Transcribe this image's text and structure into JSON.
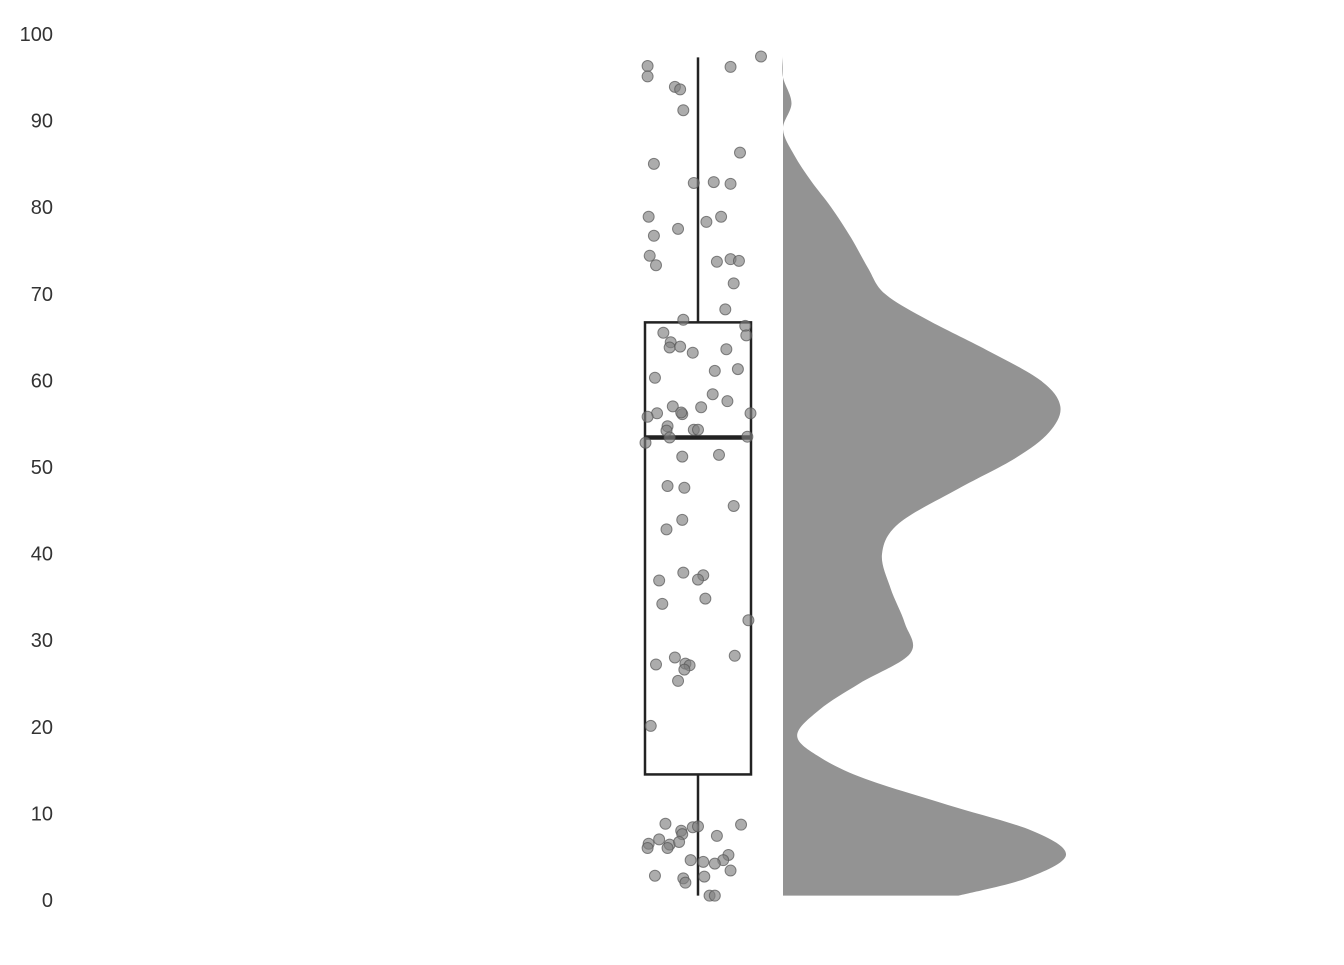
{
  "chart_data": {
    "type": "raincloud",
    "title": "",
    "xlabel": "",
    "ylabel": "",
    "ylim": [
      0,
      100
    ],
    "yticks": [
      0,
      10,
      20,
      30,
      40,
      50,
      60,
      70,
      80,
      90,
      100
    ],
    "grid": false,
    "legend": "none",
    "colors": {
      "points": "#808080",
      "point_stroke": "#555555",
      "box": "#222222",
      "density": "#939393",
      "tick_label": "#333333"
    },
    "box": {
      "whisker_low": 0.5,
      "q1": 14.5,
      "median": 53.4,
      "q3": 66.7,
      "whisker_high": 97.3
    },
    "points": [
      {
        "jitter": 0.6,
        "value": 97.4
      },
      {
        "jitter": -0.48,
        "value": 96.3
      },
      {
        "jitter": 0.31,
        "value": 96.2
      },
      {
        "jitter": -0.48,
        "value": 95.1
      },
      {
        "jitter": -0.22,
        "value": 93.9
      },
      {
        "jitter": -0.17,
        "value": 93.6
      },
      {
        "jitter": -0.14,
        "value": 91.2
      },
      {
        "jitter": 0.4,
        "value": 86.3
      },
      {
        "jitter": -0.42,
        "value": 85.0
      },
      {
        "jitter": -0.04,
        "value": 82.8
      },
      {
        "jitter": 0.15,
        "value": 82.9
      },
      {
        "jitter": 0.31,
        "value": 82.7
      },
      {
        "jitter": -0.47,
        "value": 78.9
      },
      {
        "jitter": 0.22,
        "value": 78.9
      },
      {
        "jitter": 0.08,
        "value": 78.3
      },
      {
        "jitter": -0.19,
        "value": 77.5
      },
      {
        "jitter": -0.42,
        "value": 76.7
      },
      {
        "jitter": -0.46,
        "value": 74.4
      },
      {
        "jitter": -0.4,
        "value": 73.3
      },
      {
        "jitter": 0.18,
        "value": 73.7
      },
      {
        "jitter": 0.31,
        "value": 74.0
      },
      {
        "jitter": 0.39,
        "value": 73.8
      },
      {
        "jitter": 0.34,
        "value": 71.2
      },
      {
        "jitter": 0.26,
        "value": 68.2
      },
      {
        "jitter": -0.14,
        "value": 67.0
      },
      {
        "jitter": 0.45,
        "value": 66.3
      },
      {
        "jitter": -0.33,
        "value": 65.5
      },
      {
        "jitter": 0.46,
        "value": 65.2
      },
      {
        "jitter": -0.26,
        "value": 64.4
      },
      {
        "jitter": -0.27,
        "value": 63.8
      },
      {
        "jitter": -0.17,
        "value": 63.9
      },
      {
        "jitter": -0.05,
        "value": 63.2
      },
      {
        "jitter": 0.27,
        "value": 63.6
      },
      {
        "jitter": 0.16,
        "value": 61.1
      },
      {
        "jitter": 0.38,
        "value": 61.3
      },
      {
        "jitter": -0.41,
        "value": 60.3
      },
      {
        "jitter": 0.14,
        "value": 58.4
      },
      {
        "jitter": 0.28,
        "value": 57.6
      },
      {
        "jitter": -0.24,
        "value": 57.0
      },
      {
        "jitter": 0.03,
        "value": 56.9
      },
      {
        "jitter": -0.39,
        "value": 56.2
      },
      {
        "jitter": -0.15,
        "value": 56.1
      },
      {
        "jitter": -0.16,
        "value": 56.3
      },
      {
        "jitter": 0.5,
        "value": 56.2
      },
      {
        "jitter": -0.48,
        "value": 55.8
      },
      {
        "jitter": -0.29,
        "value": 54.7
      },
      {
        "jitter": -0.3,
        "value": 54.2
      },
      {
        "jitter": -0.04,
        "value": 54.3
      },
      {
        "jitter": 0.0,
        "value": 54.3
      },
      {
        "jitter": -0.27,
        "value": 53.4
      },
      {
        "jitter": 0.47,
        "value": 53.5
      },
      {
        "jitter": -0.5,
        "value": 52.8
      },
      {
        "jitter": -0.15,
        "value": 51.2
      },
      {
        "jitter": 0.2,
        "value": 51.4
      },
      {
        "jitter": -0.29,
        "value": 47.8
      },
      {
        "jitter": -0.13,
        "value": 47.6
      },
      {
        "jitter": 0.34,
        "value": 45.5
      },
      {
        "jitter": -0.15,
        "value": 43.9
      },
      {
        "jitter": -0.3,
        "value": 42.8
      },
      {
        "jitter": -0.14,
        "value": 37.8
      },
      {
        "jitter": 0.05,
        "value": 37.5
      },
      {
        "jitter": 0.0,
        "value": 37.0
      },
      {
        "jitter": -0.37,
        "value": 36.9
      },
      {
        "jitter": 0.07,
        "value": 34.8
      },
      {
        "jitter": -0.34,
        "value": 34.2
      },
      {
        "jitter": 0.48,
        "value": 32.3
      },
      {
        "jitter": 0.35,
        "value": 28.2
      },
      {
        "jitter": -0.22,
        "value": 28.0
      },
      {
        "jitter": -0.4,
        "value": 27.2
      },
      {
        "jitter": -0.12,
        "value": 27.3
      },
      {
        "jitter": -0.08,
        "value": 27.1
      },
      {
        "jitter": -0.13,
        "value": 26.6
      },
      {
        "jitter": -0.19,
        "value": 25.3
      },
      {
        "jitter": -0.45,
        "value": 20.1
      },
      {
        "jitter": 0.41,
        "value": 8.7
      },
      {
        "jitter": -0.31,
        "value": 8.8
      },
      {
        "jitter": -0.05,
        "value": 8.4
      },
      {
        "jitter": 0.0,
        "value": 8.5
      },
      {
        "jitter": -0.16,
        "value": 8.0
      },
      {
        "jitter": -0.15,
        "value": 7.6
      },
      {
        "jitter": 0.18,
        "value": 7.4
      },
      {
        "jitter": -0.37,
        "value": 7.0
      },
      {
        "jitter": -0.27,
        "value": 6.4
      },
      {
        "jitter": -0.29,
        "value": 6.0
      },
      {
        "jitter": -0.18,
        "value": 6.7
      },
      {
        "jitter": -0.47,
        "value": 6.5
      },
      {
        "jitter": -0.48,
        "value": 6.0
      },
      {
        "jitter": 0.29,
        "value": 5.2
      },
      {
        "jitter": -0.07,
        "value": 4.6
      },
      {
        "jitter": 0.05,
        "value": 4.4
      },
      {
        "jitter": 0.24,
        "value": 4.6
      },
      {
        "jitter": 0.16,
        "value": 4.2
      },
      {
        "jitter": 0.31,
        "value": 3.4
      },
      {
        "jitter": -0.41,
        "value": 2.8
      },
      {
        "jitter": -0.14,
        "value": 2.5
      },
      {
        "jitter": 0.06,
        "value": 2.7
      },
      {
        "jitter": -0.12,
        "value": 2.0
      },
      {
        "jitter": 0.11,
        "value": 0.5
      },
      {
        "jitter": 0.16,
        "value": 0.5
      }
    ],
    "density": [
      {
        "y": 0.5,
        "d": 0.62
      },
      {
        "y": 2.5,
        "d": 0.86
      },
      {
        "y": 5.2,
        "d": 1.0
      },
      {
        "y": 8.0,
        "d": 0.88
      },
      {
        "y": 11.0,
        "d": 0.58
      },
      {
        "y": 14.0,
        "d": 0.29
      },
      {
        "y": 16.5,
        "d": 0.13
      },
      {
        "y": 19.0,
        "d": 0.05
      },
      {
        "y": 22.0,
        "d": 0.13
      },
      {
        "y": 25.0,
        "d": 0.27
      },
      {
        "y": 28.5,
        "d": 0.45
      },
      {
        "y": 32.0,
        "d": 0.43
      },
      {
        "y": 36.0,
        "d": 0.38
      },
      {
        "y": 40.0,
        "d": 0.35
      },
      {
        "y": 43.5,
        "d": 0.41
      },
      {
        "y": 47.5,
        "d": 0.62
      },
      {
        "y": 51.0,
        "d": 0.82
      },
      {
        "y": 54.0,
        "d": 0.94
      },
      {
        "y": 57.0,
        "d": 0.98
      },
      {
        "y": 60.0,
        "d": 0.91
      },
      {
        "y": 63.5,
        "d": 0.72
      },
      {
        "y": 67.0,
        "d": 0.51
      },
      {
        "y": 70.0,
        "d": 0.36
      },
      {
        "y": 73.0,
        "d": 0.3
      },
      {
        "y": 76.5,
        "d": 0.24
      },
      {
        "y": 80.0,
        "d": 0.17
      },
      {
        "y": 83.0,
        "d": 0.1
      },
      {
        "y": 86.0,
        "d": 0.04
      },
      {
        "y": 89.0,
        "d": 0.0
      },
      {
        "y": 92.0,
        "d": 0.03
      },
      {
        "y": 95.0,
        "d": 0.0
      },
      {
        "y": 97.4,
        "d": 0.0
      }
    ],
    "density_top_d": -0.28
  }
}
